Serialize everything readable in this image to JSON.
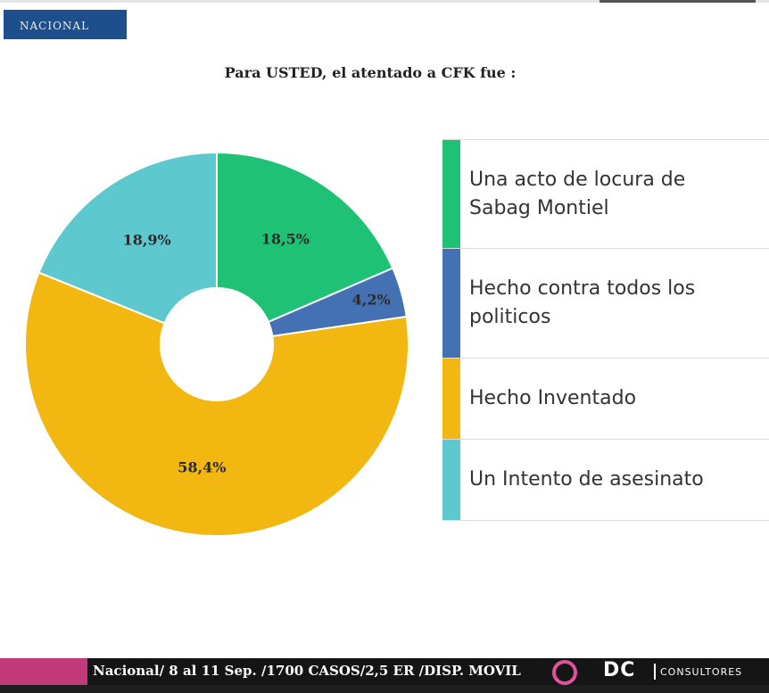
{
  "header": {
    "tag": "NACIONAL"
  },
  "chart_data": {
    "type": "pie",
    "donut": true,
    "title": "Para USTED, el atentado a CFK fue :",
    "categories": [
      "Una acto de locura de Sabag Montiel",
      "Hecho contra todos los politicos",
      "Hecho Inventado",
      "Un Intento de asesinato"
    ],
    "values": [
      18.5,
      4.2,
      58.4,
      18.9
    ],
    "value_labels": [
      "18,5%",
      "4,2%",
      "58,4%",
      "18,9%"
    ],
    "colors": [
      "#1fc274",
      "#4471b3",
      "#f2b711",
      "#5ec8cf"
    ],
    "legend_position": "right"
  },
  "footer": {
    "info": "Nacional/ 8 al 11 Sep. /1700 CASOS/2,5 ER /DISP. MOVIL",
    "logo_initials": "DC",
    "logo_text": "CONSULTORES"
  }
}
